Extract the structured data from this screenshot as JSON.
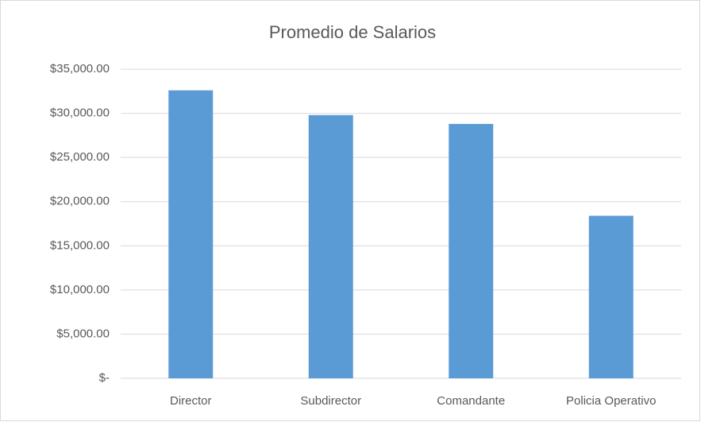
{
  "chart_data": {
    "type": "bar",
    "title": "Promedio de Salarios",
    "categories": [
      "Director",
      "Subdirector",
      "Comandante",
      "Policia Operativo"
    ],
    "values": [
      32600,
      29800,
      28800,
      18400
    ],
    "color": "#5b9bd5",
    "ylim": [
      0,
      35000
    ],
    "yticks": [
      {
        "value": 0,
        "label": "$-"
      },
      {
        "value": 5000,
        "label": "$5,000.00"
      },
      {
        "value": 10000,
        "label": "$10,000.00"
      },
      {
        "value": 15000,
        "label": "$15,000.00"
      },
      {
        "value": 20000,
        "label": "$20,000.00"
      },
      {
        "value": 25000,
        "label": "$25,000.00"
      },
      {
        "value": 30000,
        "label": "$30,000.00"
      },
      {
        "value": 35000,
        "label": "$35,000.00"
      }
    ],
    "grid": true
  }
}
